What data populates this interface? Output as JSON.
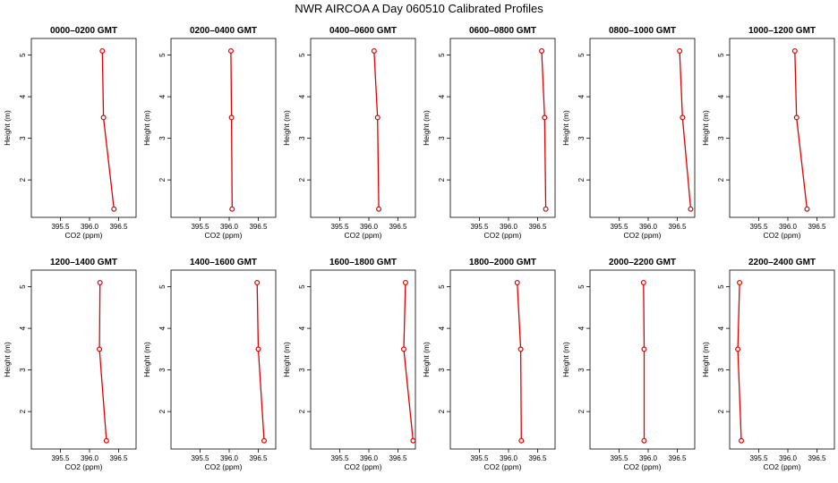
{
  "title": "NWR AIRCOA A  Day 060510  Calibrated Profiles",
  "style": {
    "line_color": "#e00000",
    "marker_color": "#e00000",
    "axis_color": "#000000"
  },
  "chart_data": [
    {
      "type": "line",
      "title": "0000–0200 GMT",
      "xlabel": "CO2 (ppm)",
      "ylabel": "Height (m)",
      "xlim": [
        395.0,
        396.8
      ],
      "ylim": [
        1.1,
        5.4
      ],
      "xticks": [
        "395.5",
        "396.0",
        "396.5"
      ],
      "yticks": [
        "2",
        "3",
        "4",
        "5"
      ],
      "x": [
        396.22,
        396.24,
        396.42
      ],
      "y": [
        5.1,
        3.5,
        1.3
      ]
    },
    {
      "type": "line",
      "title": "0200–0400 GMT",
      "xlabel": "CO2 (ppm)",
      "ylabel": "Height (m)",
      "xlim": [
        395.0,
        396.8
      ],
      "ylim": [
        1.1,
        5.4
      ],
      "xticks": [
        "395.5",
        "396.0",
        "396.5"
      ],
      "yticks": [
        "2",
        "3",
        "4",
        "5"
      ],
      "x": [
        396.03,
        396.04,
        396.05
      ],
      "y": [
        5.1,
        3.5,
        1.3
      ]
    },
    {
      "type": "line",
      "title": "0400–0600 GMT",
      "xlabel": "CO2 (ppm)",
      "ylabel": "Height (m)",
      "xlim": [
        395.0,
        396.8
      ],
      "ylim": [
        1.1,
        5.4
      ],
      "xticks": [
        "395.5",
        "396.0",
        "396.5"
      ],
      "yticks": [
        "2",
        "3",
        "4",
        "5"
      ],
      "x": [
        396.09,
        396.15,
        396.17
      ],
      "y": [
        5.1,
        3.5,
        1.3
      ]
    },
    {
      "type": "line",
      "title": "0600–0800 GMT",
      "xlabel": "CO2 (ppm)",
      "ylabel": "Height (m)",
      "xlim": [
        395.0,
        396.8
      ],
      "ylim": [
        1.1,
        5.4
      ],
      "xticks": [
        "395.5",
        "396.0",
        "396.5"
      ],
      "yticks": [
        "2",
        "3",
        "4",
        "5"
      ],
      "x": [
        396.57,
        396.62,
        396.64
      ],
      "y": [
        5.1,
        3.5,
        1.3
      ]
    },
    {
      "type": "line",
      "title": "0800–1000 GMT",
      "xlabel": "CO2 (ppm)",
      "ylabel": "Height (m)",
      "xlim": [
        395.0,
        396.8
      ],
      "ylim": [
        1.1,
        5.4
      ],
      "xticks": [
        "395.5",
        "396.0",
        "396.5"
      ],
      "yticks": [
        "2",
        "3",
        "4",
        "5"
      ],
      "x": [
        396.54,
        396.59,
        396.73
      ],
      "y": [
        5.1,
        3.5,
        1.3
      ]
    },
    {
      "type": "line",
      "title": "1000–1200 GMT",
      "xlabel": "CO2 (ppm)",
      "ylabel": "Height (m)",
      "xlim": [
        395.0,
        396.8
      ],
      "ylim": [
        1.1,
        5.4
      ],
      "xticks": [
        "395.5",
        "396.0",
        "396.5"
      ],
      "yticks": [
        "2",
        "3",
        "4",
        "5"
      ],
      "x": [
        396.12,
        396.15,
        396.33
      ],
      "y": [
        5.1,
        3.5,
        1.3
      ]
    },
    {
      "type": "line",
      "title": "1200–1400 GMT",
      "xlabel": "CO2 (ppm)",
      "ylabel": "Height (m)",
      "xlim": [
        395.0,
        396.8
      ],
      "ylim": [
        1.1,
        5.4
      ],
      "xticks": [
        "395.5",
        "396.0",
        "396.5"
      ],
      "yticks": [
        "2",
        "3",
        "4",
        "5"
      ],
      "x": [
        396.18,
        396.17,
        396.29
      ],
      "y": [
        5.1,
        3.5,
        1.3
      ]
    },
    {
      "type": "line",
      "title": "1400–1600 GMT",
      "xlabel": "CO2 (ppm)",
      "ylabel": "Height (m)",
      "xlim": [
        395.0,
        396.8
      ],
      "ylim": [
        1.1,
        5.4
      ],
      "xticks": [
        "395.5",
        "396.0",
        "396.5"
      ],
      "yticks": [
        "2",
        "3",
        "4",
        "5"
      ],
      "x": [
        396.48,
        396.5,
        396.6
      ],
      "y": [
        5.1,
        3.5,
        1.3
      ]
    },
    {
      "type": "line",
      "title": "1600–1800 GMT",
      "xlabel": "CO2 (ppm)",
      "ylabel": "Height (m)",
      "xlim": [
        395.0,
        396.8
      ],
      "ylim": [
        1.1,
        5.4
      ],
      "xticks": [
        "395.5",
        "396.0",
        "396.5"
      ],
      "yticks": [
        "2",
        "3",
        "4",
        "5"
      ],
      "x": [
        396.63,
        396.6,
        396.76
      ],
      "y": [
        5.1,
        3.5,
        1.3
      ]
    },
    {
      "type": "line",
      "title": "1800–2000 GMT",
      "xlabel": "CO2 (ppm)",
      "ylabel": "Height (m)",
      "xlim": [
        395.0,
        396.8
      ],
      "ylim": [
        1.1,
        5.4
      ],
      "xticks": [
        "395.5",
        "396.0",
        "396.5"
      ],
      "yticks": [
        "2",
        "3",
        "4",
        "5"
      ],
      "x": [
        396.15,
        396.21,
        396.22
      ],
      "y": [
        5.1,
        3.5,
        1.3
      ]
    },
    {
      "type": "line",
      "title": "2000–2200 GMT",
      "xlabel": "CO2 (ppm)",
      "ylabel": "Height (m)",
      "xlim": [
        395.0,
        396.8
      ],
      "ylim": [
        1.1,
        5.4
      ],
      "xticks": [
        "395.5",
        "396.0",
        "396.5"
      ],
      "yticks": [
        "2",
        "3",
        "4",
        "5"
      ],
      "x": [
        395.92,
        395.93,
        395.93
      ],
      "y": [
        5.1,
        3.5,
        1.3
      ]
    },
    {
      "type": "line",
      "title": "2200–2400 GMT",
      "xlabel": "CO2 (ppm)",
      "ylabel": "Height (m)",
      "xlim": [
        395.0,
        396.8
      ],
      "ylim": [
        1.1,
        5.4
      ],
      "xticks": [
        "395.5",
        "396.0",
        "396.5"
      ],
      "yticks": [
        "2",
        "3",
        "4",
        "5"
      ],
      "x": [
        395.17,
        395.14,
        395.2
      ],
      "y": [
        5.1,
        3.5,
        1.3
      ]
    }
  ]
}
